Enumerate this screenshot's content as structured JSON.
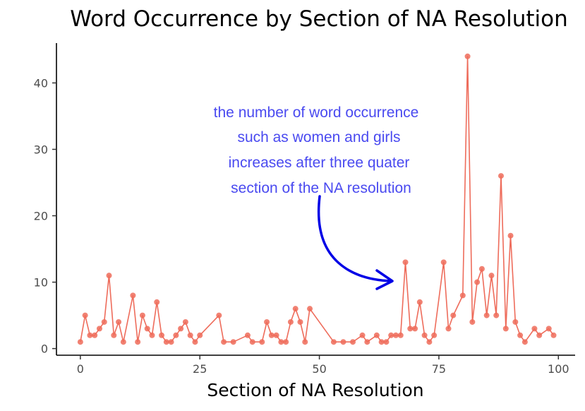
{
  "chart_data": {
    "type": "line",
    "title": "Word Occurrence by Section of NA Resolution",
    "xlabel": "Section of NA Resolution",
    "ylabel": "",
    "xlim": [
      -5,
      103.5
    ],
    "ylim": [
      -1,
      46
    ],
    "xticks": [
      "0",
      "25",
      "50",
      "75",
      "100"
    ],
    "yticks": [
      "0",
      "10",
      "20",
      "30",
      "40"
    ],
    "grid": false,
    "legend": "none",
    "series_color": "#EE6C5B",
    "annotation_color": "#4A4AF0",
    "arrow_color": "#0000E6",
    "x": [
      0,
      1,
      2,
      3,
      4,
      5,
      6,
      7,
      8,
      9,
      11,
      12,
      13,
      14,
      15,
      16,
      17,
      18,
      19,
      20,
      21,
      22,
      23,
      24,
      25,
      29,
      30,
      32,
      35,
      36,
      38,
      39,
      40,
      41,
      42,
      43,
      44,
      45,
      46,
      47,
      48,
      53,
      55,
      57,
      59,
      60,
      62,
      63,
      64,
      65,
      66,
      67,
      68,
      69,
      70,
      71,
      72,
      73,
      74,
      76,
      77,
      78,
      80,
      81,
      82,
      83,
      84,
      85,
      86,
      87,
      88,
      89,
      90,
      91,
      92,
      93,
      95,
      96,
      98,
      99
    ],
    "y": [
      1,
      5,
      2,
      2,
      3,
      4,
      11,
      2,
      4,
      1,
      8,
      1,
      5,
      3,
      2,
      7,
      2,
      1,
      1,
      2,
      3,
      4,
      2,
      1,
      2,
      5,
      1,
      1,
      2,
      1,
      1,
      4,
      2,
      2,
      1,
      1,
      4,
      6,
      4,
      1,
      6,
      1,
      1,
      1,
      2,
      1,
      2,
      1,
      1,
      2,
      2,
      2,
      13,
      3,
      3,
      7,
      2,
      1,
      2,
      13,
      3,
      5,
      8,
      44,
      4,
      10,
      12,
      5,
      11,
      5,
      26,
      3,
      17,
      4,
      2,
      1,
      3,
      2,
      3,
      2
    ],
    "annotation": {
      "lines": [
        "the number of word occurrence",
        "such as women and girls",
        "increases after three quater",
        "section of the NA resolution"
      ]
    }
  }
}
